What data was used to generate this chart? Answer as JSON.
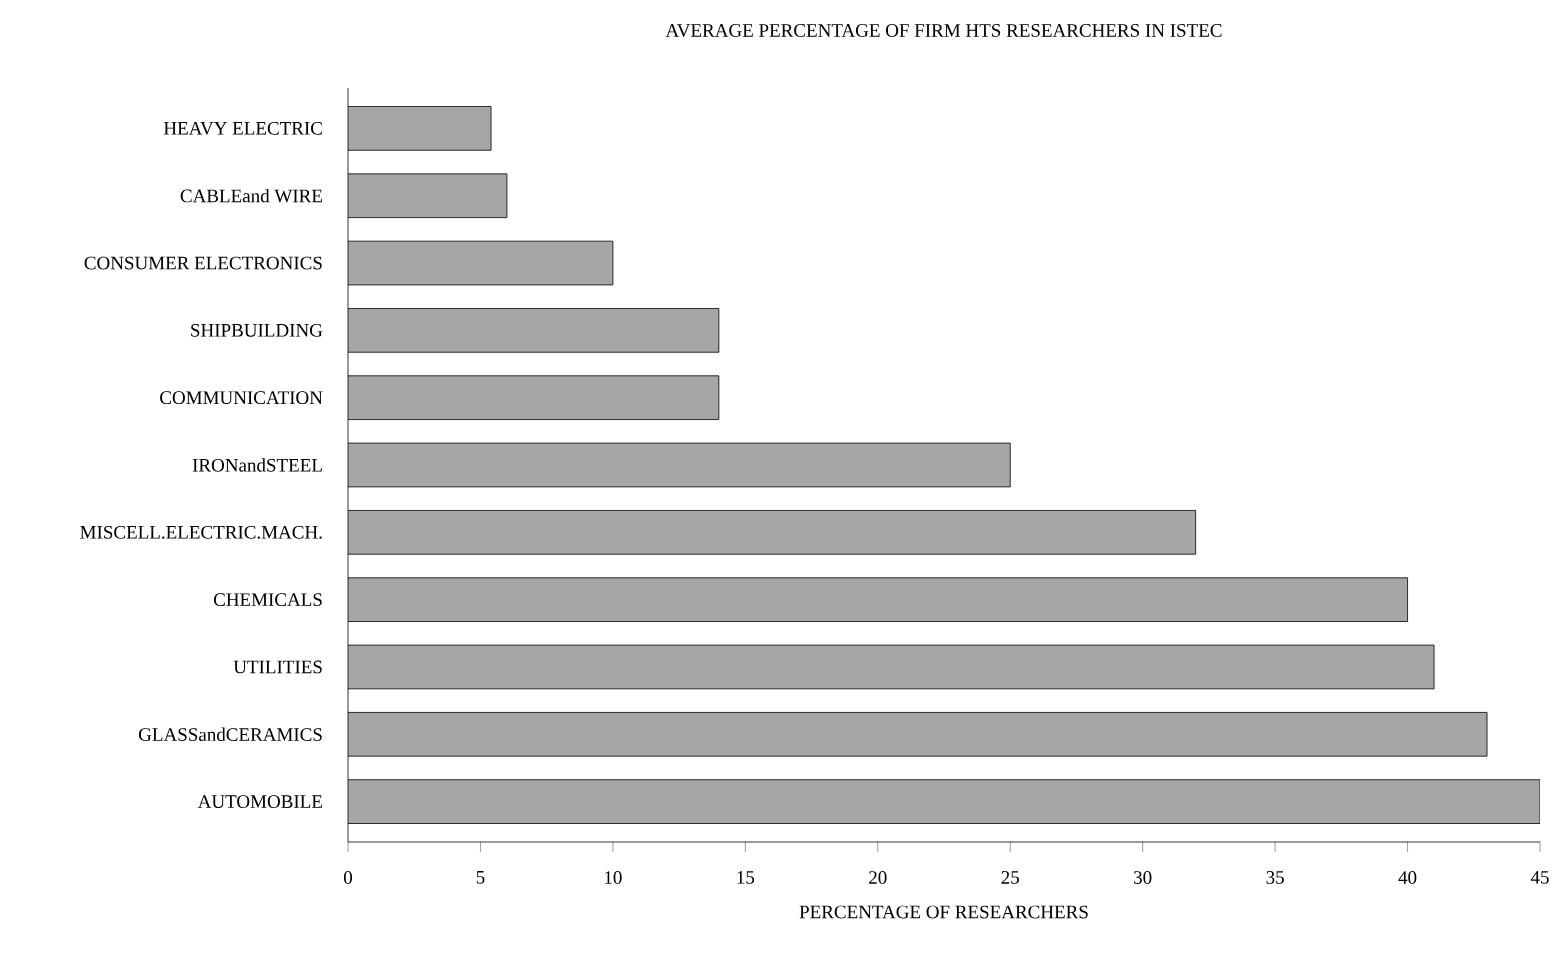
{
  "chart_data": {
    "type": "bar",
    "orientation": "horizontal",
    "title": "AVERAGE PERCENTAGE OF FIRM HTS RESEARCHERS IN ISTEC",
    "xlabel": "PERCENTAGE OF RESEARCHERS",
    "categories": [
      "HEAVY ELECTRIC",
      "CABLEand WIRE",
      "CONSUMER ELECTRONICS",
      "SHIPBUILDING",
      "COMMUNICATION",
      "IRONandSTEEL",
      "MISCELL.ELECTRIC.MACH.",
      "CHEMICALS",
      "UTILITIES",
      "GLASSandCERAMICS",
      "AUTOMOBILE"
    ],
    "values": [
      5.4,
      6,
      10,
      14,
      14,
      25,
      32,
      40,
      41,
      43,
      45
    ],
    "color": "#a6a6a6",
    "xlim": [
      0,
      45
    ],
    "xticks": [
      0,
      5,
      10,
      15,
      20,
      25,
      30,
      35,
      40,
      45
    ]
  }
}
